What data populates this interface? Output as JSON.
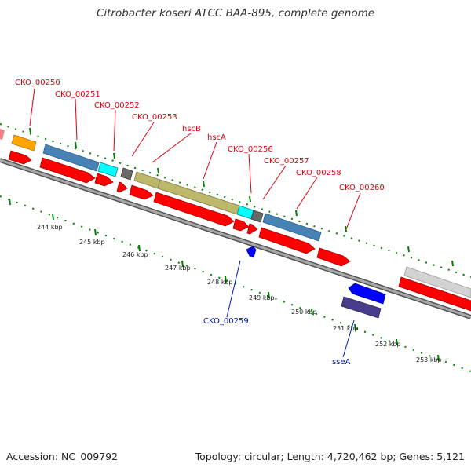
{
  "title": "Citrobacter koseri ATCC BAA-895, complete genome",
  "footer": {
    "accession": "Accession: NC_009792",
    "stats": "Topology: circular; Length: 4,720,462 bp; Genes: 5,121"
  },
  "colors": {
    "cds_red": "#ff0000",
    "steel_blue": "#4682b4",
    "cyan": "#00ffff",
    "khaki": "#bdb76b",
    "dark_gray": "#696969",
    "orange": "#ffa500",
    "blue": "#0000ff",
    "dark_slate_blue": "#483d8b",
    "light_gray": "#d3d3d3",
    "backbone": "#808080",
    "tick_green": "#008000",
    "label_red": "#e1000f",
    "label_blue": "#0016b4"
  },
  "kbp_ticks": [
    "244 kbp",
    "245 kbp",
    "246 kbp",
    "247 kbp",
    "248 kbp",
    "249 kbp",
    "250 kbp",
    "251 kbp",
    "252 kbp",
    "253 kbp"
  ],
  "gene_labels_top": [
    "CKO_00250",
    "CKO_00251",
    "CKO_00252",
    "CKO_00253",
    "hscB",
    "hscA",
    "CKO_00256",
    "CKO_00257",
    "CKO_00258",
    "CKO_00260"
  ],
  "gene_labels_bottom": [
    "CKO_00259",
    "sseA"
  ]
}
